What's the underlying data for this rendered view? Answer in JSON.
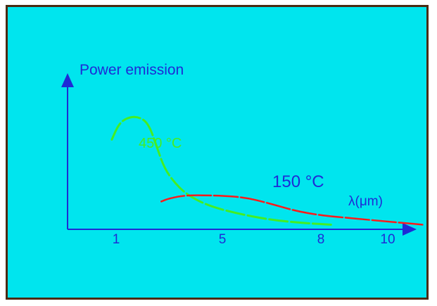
{
  "chart_data": {
    "type": "line",
    "ylabel": "Power emission",
    "xlabel": "λ(μm)",
    "x_ticks": [
      "1",
      "5",
      "8",
      "10"
    ],
    "xlim": [
      0,
      12
    ],
    "ylim": [
      0,
      1
    ],
    "grid": false,
    "series": [
      {
        "name": "450 °C",
        "color": "#44ee22",
        "points": [
          [
            0.9,
            0.58
          ],
          [
            1.1,
            0.68
          ],
          [
            1.4,
            0.72
          ],
          [
            1.8,
            0.73
          ],
          [
            2.2,
            0.69
          ],
          [
            2.5,
            0.55
          ],
          [
            2.8,
            0.4
          ],
          [
            3.2,
            0.3
          ],
          [
            3.7,
            0.22
          ],
          [
            4.5,
            0.15
          ],
          [
            5.5,
            0.1
          ],
          [
            6.5,
            0.06
          ],
          [
            7.5,
            0.04
          ],
          [
            8.3,
            0.03
          ]
        ]
      },
      {
        "name": "150 °C",
        "color": "#ff1a1a",
        "points": [
          [
            2.7,
            0.18
          ],
          [
            3.0,
            0.2
          ],
          [
            3.6,
            0.22
          ],
          [
            4.5,
            0.22
          ],
          [
            5.6,
            0.21
          ],
          [
            6.4,
            0.17
          ],
          [
            7.2,
            0.12
          ],
          [
            8.0,
            0.09
          ],
          [
            9.0,
            0.07
          ],
          [
            10.0,
            0.05
          ],
          [
            11.0,
            0.04
          ],
          [
            11.9,
            0.03
          ]
        ]
      }
    ],
    "annotations": [
      {
        "text": "450 °C",
        "color": "#44ee22"
      },
      {
        "text": "150 °C",
        "color": "#1e2bd6"
      }
    ]
  }
}
